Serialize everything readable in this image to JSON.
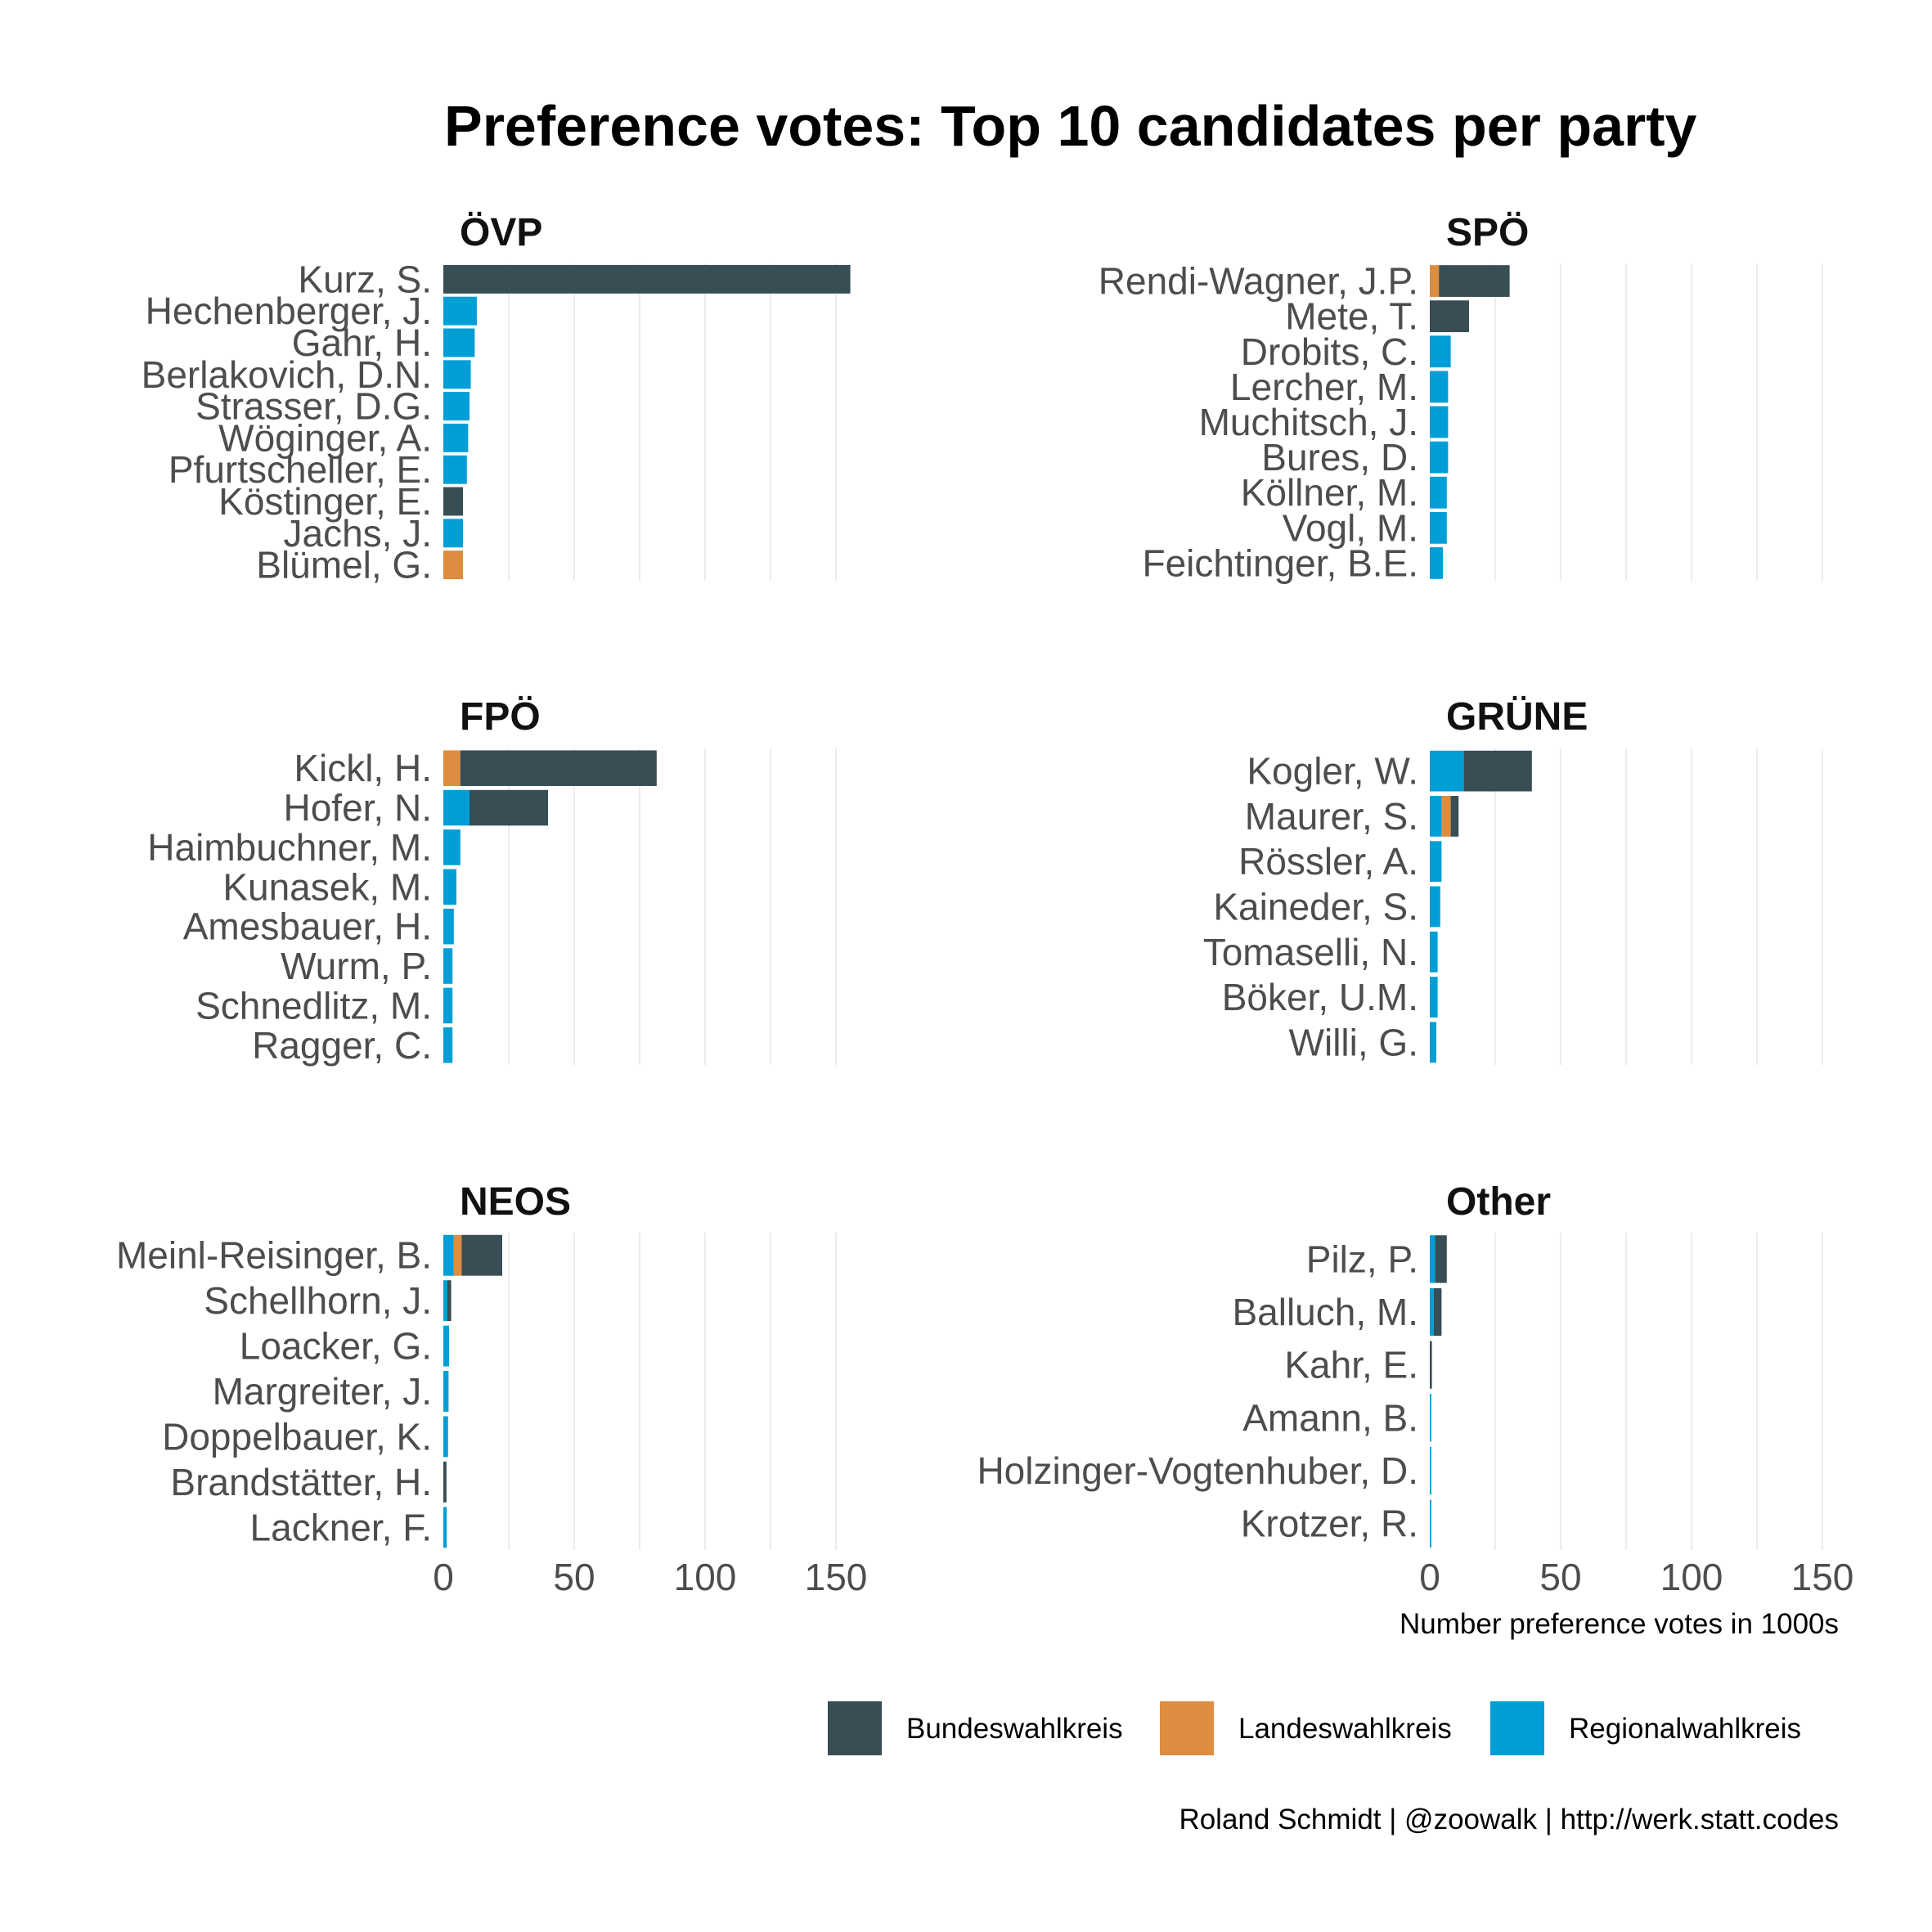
{
  "chart_data": {
    "type": "bar",
    "orientation": "horizontal",
    "stacked": true,
    "title": "Preference votes: Top 10 candidates per party",
    "xlabel": "Number preference votes in 1000s",
    "xlim": [
      0,
      150
    ],
    "xticks": [
      "0",
      "50",
      "100",
      "150"
    ],
    "grid": true,
    "legend_position": "bottom-right",
    "series": [
      {
        "name": "Bundeswahlkreis",
        "color": "#384d54"
      },
      {
        "name": "Landeswahlkreis",
        "color": "#de8c3f"
      },
      {
        "name": "Regionalwahlkreis",
        "color": "#009ed6"
      }
    ],
    "panels": [
      {
        "party": "ÖVP",
        "categories": [
          "Kurz, S.",
          "Hechenberger, J.",
          "Gahr, H.",
          "Berlakovich, D.N.",
          "Strasser, D.G.",
          "Wöginger, A.",
          "Pfurtscheller, E.",
          "Köstinger, E.",
          "Jachs, J.",
          "Blümel, G."
        ],
        "values": {
          "Bundeswahlkreis": [
            155.5,
            0,
            0,
            0,
            0,
            0,
            0,
            7.5,
            0,
            0
          ],
          "Landeswahlkreis": [
            0,
            0,
            0,
            0,
            0,
            0,
            0,
            0,
            0,
            7.5
          ],
          "Regionalwahlkreis": [
            0,
            12.8,
            12.0,
            10.5,
            10.0,
            9.5,
            9.0,
            0,
            7.5,
            0
          ]
        }
      },
      {
        "party": "SPÖ",
        "categories": [
          "Rendi-Wagner, J.P.",
          "Mete, T.",
          "Drobits, C.",
          "Lercher, M.",
          "Muchitsch, J.",
          "Bures, D.",
          "Köllner, M.",
          "Vogl, M.",
          "Feichtinger, B.E."
        ],
        "values": {
          "Bundeswahlkreis": [
            27.0,
            15.0,
            0,
            0,
            0,
            0,
            0,
            0,
            0
          ],
          "Landeswahlkreis": [
            3.5,
            0,
            0,
            0,
            0,
            0,
            0,
            0,
            0
          ],
          "Regionalwahlkreis": [
            0,
            0,
            8.0,
            7.0,
            7.0,
            7.0,
            6.5,
            6.5,
            5.0
          ]
        }
      },
      {
        "party": "FPÖ",
        "categories": [
          "Kickl, H.",
          "Hofer, N.",
          "Haimbuchner, M.",
          "Kunasek, M.",
          "Amesbauer, H.",
          "Wurm, P.",
          "Schnedlitz, M.",
          "Ragger, C."
        ],
        "values": {
          "Bundeswahlkreis": [
            75.0,
            30.0,
            0,
            0,
            0,
            0,
            0,
            0
          ],
          "Landeswahlkreis": [
            6.5,
            0,
            0,
            0,
            0,
            0,
            0,
            0
          ],
          "Regionalwahlkreis": [
            0,
            10.0,
            6.5,
            5.0,
            4.0,
            3.5,
            3.5,
            3.5
          ]
        }
      },
      {
        "party": "GRÜNE",
        "categories": [
          "Kogler, W.",
          "Maurer, S.",
          "Rössler, A.",
          "Kaineder, S.",
          "Tomaselli, N.",
          "Böker, U.M.",
          "Willi, G."
        ],
        "values": {
          "Bundeswahlkreis": [
            26.0,
            3.0,
            0,
            0,
            0,
            0,
            0
          ],
          "Landeswahlkreis": [
            0,
            3.5,
            0,
            0,
            0,
            0,
            0
          ],
          "Regionalwahlkreis": [
            13.0,
            4.5,
            4.5,
            4.0,
            3.0,
            3.0,
            2.5
          ]
        }
      },
      {
        "party": "NEOS",
        "categories": [
          "Meinl-Reisinger, B.",
          "Schellhorn, J.",
          "Loacker, G.",
          "Margreiter, J.",
          "Doppelbauer, K.",
          "Brandstätter, H.",
          "Lackner, F."
        ],
        "values": {
          "Bundeswahlkreis": [
            15.5,
            1.5,
            0,
            0,
            0,
            1.2,
            0
          ],
          "Landeswahlkreis": [
            3.0,
            0,
            0,
            0,
            0,
            0,
            0
          ],
          "Regionalwahlkreis": [
            4.0,
            1.5,
            2.2,
            2.0,
            1.8,
            0,
            1.3
          ]
        }
      },
      {
        "party": "Other",
        "categories": [
          "Pilz, P.",
          "Balluch, M.",
          "Kahr, E.",
          "Amann, B.",
          "Holzinger-Vogtenhuber, D.",
          "Krotzer, R."
        ],
        "values": {
          "Bundeswahlkreis": [
            4.5,
            3.0,
            0.8,
            0,
            0,
            0
          ],
          "Landeswahlkreis": [
            0,
            0,
            0,
            0,
            0,
            0
          ],
          "Regionalwahlkreis": [
            2.0,
            1.5,
            0,
            0.6,
            0.6,
            0.6
          ]
        }
      }
    ],
    "caption": "Roland Schmidt | @zoowalk | http://werk.statt.codes"
  }
}
